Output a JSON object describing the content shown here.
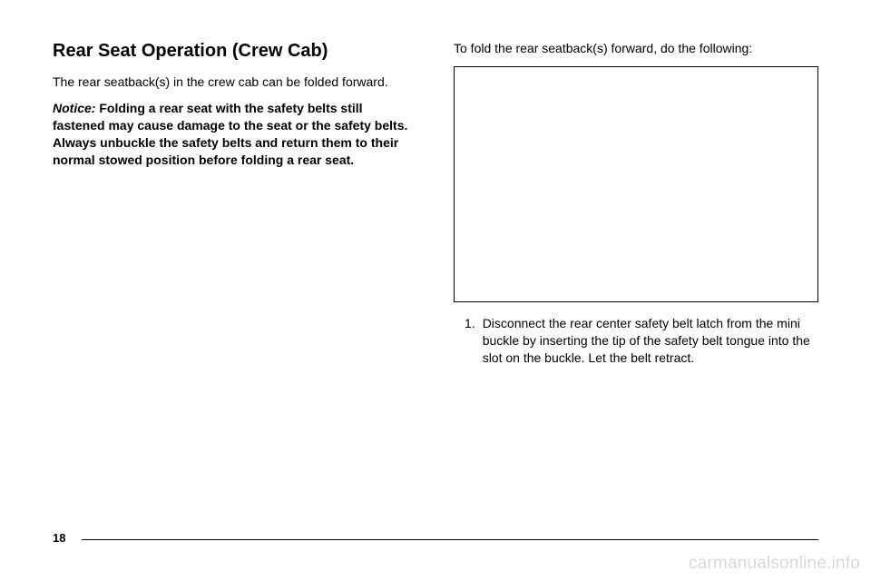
{
  "left": {
    "heading": "Rear Seat Operation (Crew Cab)",
    "intro": "The rear seatback(s) in the crew cab can be folded forward.",
    "notice_label": "Notice:",
    "notice_text": "Folding a rear seat with the safety belts still fastened may cause damage to the seat or the safety belts. Always unbuckle the safety belts and return them to their normal stowed position before folding a rear seat."
  },
  "right": {
    "lead": "To fold the rear seatback(s) forward, do the following:",
    "step_num": "1.",
    "step_text": "Disconnect the rear center safety belt latch from the mini buckle by inserting the tip of the safety belt tongue into the slot on the buckle. Let the belt retract."
  },
  "footer": {
    "page_number": "18",
    "watermark": "carmanualsonline.info"
  },
  "colors": {
    "text": "#000000",
    "background": "#ffffff",
    "watermark": "#d9d9d9",
    "rule": "#000000"
  }
}
